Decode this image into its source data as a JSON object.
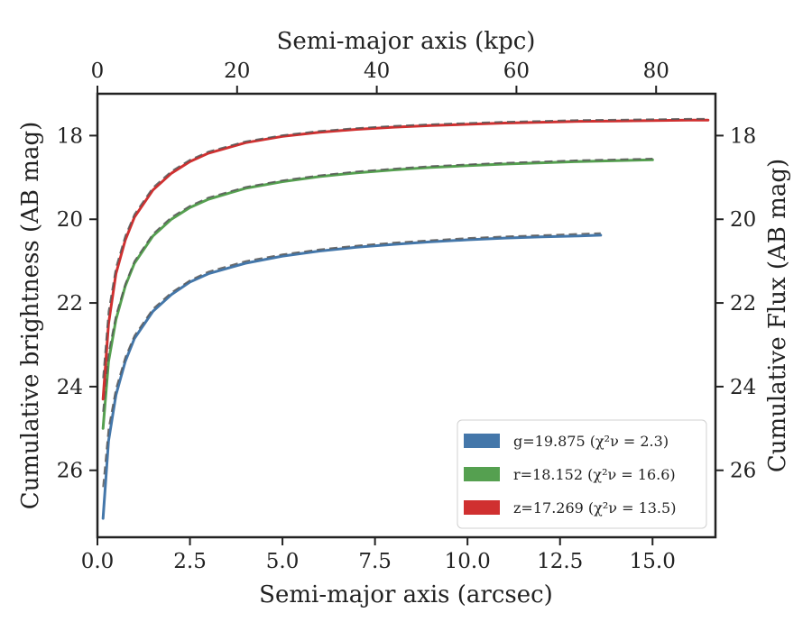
{
  "chart_data": {
    "type": "line",
    "xlabel": "Semi-major axis (arcsec)",
    "ylabel": "Cumulative brightness (AB mag)",
    "top_xlabel": "Semi-major axis (kpc)",
    "right_ylabel": "Cumulative Flux (AB mag)",
    "xlim": [
      0,
      16.7
    ],
    "ylim": [
      27.6,
      17.0
    ],
    "top_xlim": [
      0,
      88.5
    ],
    "x_ticks": [
      0.0,
      2.5,
      5.0,
      7.5,
      10.0,
      12.5,
      15.0
    ],
    "x_tick_labels": [
      "0.0",
      "2.5",
      "5.0",
      "7.5",
      "10.0",
      "12.5",
      "15.0"
    ],
    "top_x_ticks": [
      0,
      20,
      40,
      60,
      80
    ],
    "top_x_tick_labels": [
      "0",
      "20",
      "40",
      "60",
      "80"
    ],
    "y_ticks": [
      18,
      20,
      22,
      24,
      26
    ],
    "y_tick_labels": [
      "18",
      "20",
      "22",
      "24",
      "26"
    ],
    "grid": false,
    "legend_position": "lower-right",
    "series": [
      {
        "name": "g=19.875",
        "legend_label": "g=19.875 (χ²ν = 2.3)",
        "color": "#4477aa",
        "model_x": [
          0.15,
          0.3,
          0.5,
          0.75,
          1.0,
          1.5,
          2.0,
          2.5,
          3.0,
          4.0,
          5.0,
          6.0,
          7.0,
          8.0,
          9.0,
          10.0,
          11.0,
          12.0,
          13.0,
          13.6
        ],
        "model_y": [
          27.15,
          25.3,
          24.2,
          23.4,
          22.85,
          22.2,
          21.8,
          21.5,
          21.3,
          21.05,
          20.88,
          20.76,
          20.67,
          20.6,
          20.54,
          20.49,
          20.45,
          20.42,
          20.4,
          20.38
        ],
        "fit_x": [
          0.15,
          0.3,
          0.5,
          0.75,
          1.0,
          1.5,
          2.0,
          2.5,
          3.0,
          4.0,
          5.0,
          6.0,
          7.0,
          8.0,
          9.0,
          10.0,
          11.0,
          12.0,
          13.0,
          13.6
        ],
        "fit_y": [
          26.4,
          25.0,
          24.05,
          23.3,
          22.78,
          22.14,
          21.75,
          21.46,
          21.25,
          21.0,
          20.84,
          20.72,
          20.63,
          20.56,
          20.5,
          20.45,
          20.41,
          20.38,
          20.35,
          20.33
        ]
      },
      {
        "name": "r=18.152",
        "legend_label": "r=18.152 (χ²ν = 16.6)",
        "color": "#55a050",
        "model_x": [
          0.15,
          0.3,
          0.5,
          0.75,
          1.0,
          1.5,
          2.0,
          2.5,
          3.0,
          4.0,
          5.0,
          6.0,
          7.0,
          8.0,
          9.0,
          10.0,
          11.0,
          12.0,
          13.0,
          14.0,
          15.0
        ],
        "model_y": [
          25.0,
          23.4,
          22.4,
          21.6,
          21.05,
          20.4,
          20.0,
          19.72,
          19.52,
          19.26,
          19.1,
          18.98,
          18.89,
          18.82,
          18.76,
          18.72,
          18.68,
          18.65,
          18.62,
          18.6,
          18.58
        ],
        "fit_x": [
          0.15,
          0.3,
          0.5,
          0.75,
          1.0,
          1.5,
          2.0,
          2.5,
          3.0,
          4.0,
          5.0,
          6.0,
          7.0,
          8.0,
          9.0,
          10.0,
          11.0,
          12.0,
          13.0,
          14.0,
          15.0
        ],
        "fit_y": [
          24.6,
          23.2,
          22.3,
          21.55,
          21.0,
          20.35,
          19.95,
          19.68,
          19.48,
          19.23,
          19.07,
          18.95,
          18.86,
          18.79,
          18.73,
          18.69,
          18.65,
          18.62,
          18.59,
          18.57,
          18.55
        ]
      },
      {
        "name": "z=17.269",
        "legend_label": "z=17.269 (χ²ν = 13.5)",
        "color": "#d03030",
        "model_x": [
          0.15,
          0.3,
          0.5,
          0.75,
          1.0,
          1.5,
          2.0,
          2.5,
          3.0,
          4.0,
          5.0,
          6.0,
          7.0,
          8.0,
          9.0,
          10.0,
          11.0,
          12.0,
          13.0,
          14.0,
          15.0,
          16.0,
          16.5
        ],
        "model_y": [
          24.3,
          22.5,
          21.3,
          20.5,
          19.95,
          19.3,
          18.9,
          18.62,
          18.42,
          18.17,
          18.02,
          17.92,
          17.85,
          17.8,
          17.76,
          17.73,
          17.7,
          17.68,
          17.66,
          17.65,
          17.64,
          17.63,
          17.63
        ],
        "fit_x": [
          0.15,
          0.3,
          0.5,
          0.75,
          1.0,
          1.5,
          2.0,
          2.5,
          3.0,
          4.0,
          5.0,
          6.0,
          7.0,
          8.0,
          9.0,
          10.0,
          11.0,
          12.0,
          13.0,
          14.0,
          15.0,
          16.0,
          16.5
        ],
        "fit_y": [
          23.8,
          22.2,
          21.15,
          20.4,
          19.88,
          19.24,
          18.85,
          18.58,
          18.38,
          18.14,
          17.99,
          17.89,
          17.82,
          17.77,
          17.73,
          17.7,
          17.67,
          17.65,
          17.63,
          17.62,
          17.61,
          17.6,
          17.6
        ]
      }
    ]
  }
}
